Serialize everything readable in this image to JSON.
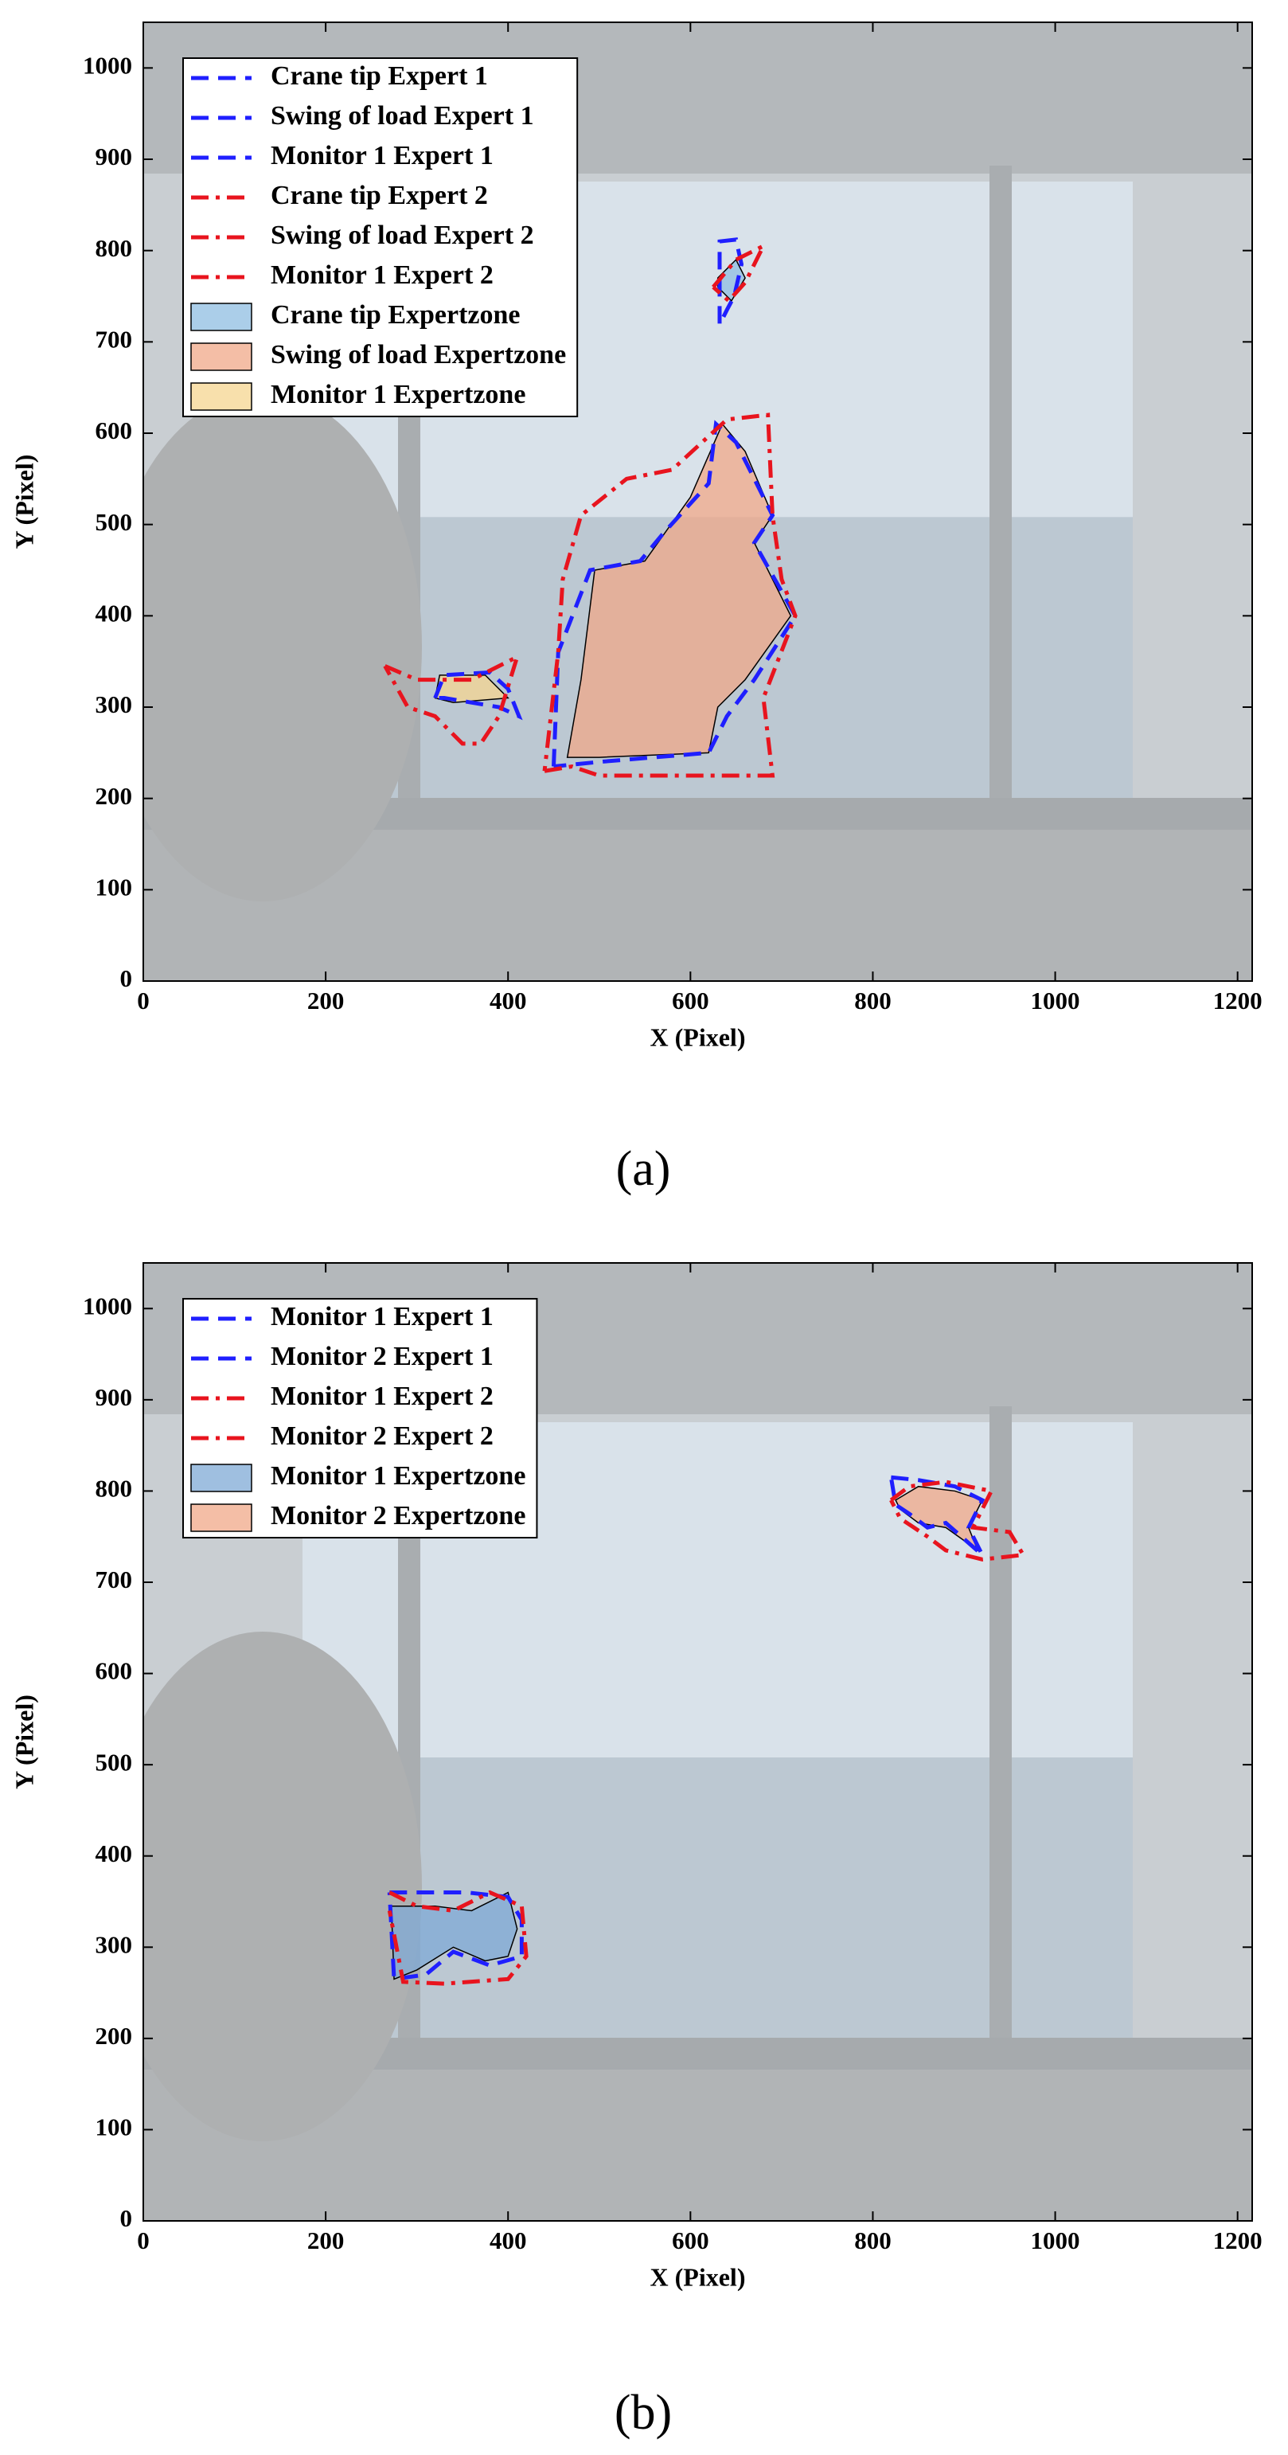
{
  "chart_data": [
    {
      "type": "line",
      "label": "(a)",
      "xlabel": "X (Pixel)",
      "ylabel": "Y (Pixel)",
      "xlim": [
        0,
        1216
      ],
      "ylim": [
        0,
        1050
      ],
      "xticks": [
        0,
        200,
        400,
        600,
        800,
        1000,
        1200
      ],
      "yticks": [
        0,
        100,
        200,
        300,
        400,
        500,
        600,
        700,
        800,
        900,
        1000
      ],
      "legend": "upper left",
      "series": [
        {
          "name": "Crane tip Expert 1",
          "color": "#1f1fff",
          "dash": "dash",
          "x": [
            632,
            632,
            650,
            656,
            648,
            640,
            635
          ],
          "y": [
            720,
            810,
            812,
            785,
            750,
            735,
            725
          ]
        },
        {
          "name": "Swing of load Expert 1",
          "color": "#1f1fff",
          "dash": "dash",
          "x": [
            450,
            455,
            490,
            545,
            570,
            620,
            628,
            650,
            690,
            670,
            715,
            670,
            640,
            620,
            500,
            450
          ],
          "y": [
            235,
            360,
            450,
            460,
            490,
            545,
            610,
            590,
            510,
            480,
            400,
            330,
            290,
            250,
            240,
            235
          ]
        },
        {
          "name": "Monitor 1 Expert 1",
          "color": "#1f1fff",
          "dash": "dash",
          "x": [
            320,
            330,
            380,
            400,
            412,
            390,
            330,
            320
          ],
          "y": [
            310,
            335,
            338,
            320,
            290,
            300,
            310,
            310
          ]
        },
        {
          "name": "Crane tip Expert 2",
          "color": "#e8141e",
          "dash": "dashdot",
          "x": [
            625,
            650,
            680,
            660,
            642,
            625
          ],
          "y": [
            760,
            790,
            805,
            765,
            745,
            760
          ]
        },
        {
          "name": "Swing of load Expert 2",
          "color": "#e8141e",
          "dash": "dashdot",
          "x": [
            440,
            470,
            500,
            620,
            690,
            680,
            715,
            700,
            690,
            685,
            640,
            580,
            530,
            480,
            460,
            455,
            440
          ],
          "y": [
            230,
            235,
            225,
            225,
            225,
            310,
            400,
            440,
            510,
            620,
            615,
            560,
            550,
            510,
            440,
            360,
            230
          ]
        },
        {
          "name": "Monitor 1 Expert 2",
          "color": "#e8141e",
          "dash": "dashdot",
          "x": [
            265,
            300,
            360,
            410,
            390,
            370,
            350,
            320,
            290,
            265
          ],
          "y": [
            345,
            330,
            330,
            355,
            290,
            260,
            260,
            290,
            300,
            345
          ]
        },
        {
          "name": "Crane tip Expertzone",
          "fill": "#8fbde2",
          "edge": "#000000",
          "x": [
            630,
            650,
            660,
            645,
            630
          ],
          "y": [
            770,
            790,
            770,
            745,
            760
          ]
        },
        {
          "name": "Swing of load Expertzone",
          "fill": "#f0a888",
          "edge": "#000000",
          "x": [
            465,
            480,
            495,
            550,
            600,
            635,
            660,
            690,
            670,
            710,
            660,
            630,
            620,
            500
          ],
          "y": [
            245,
            330,
            450,
            460,
            530,
            610,
            580,
            510,
            480,
            400,
            330,
            300,
            250,
            245
          ]
        },
        {
          "name": "Monitor 1 Expertzone",
          "fill": "#f6d690",
          "edge": "#000000",
          "x": [
            320,
            325,
            375,
            400,
            340
          ],
          "y": [
            310,
            335,
            335,
            310,
            305
          ]
        }
      ]
    },
    {
      "type": "line",
      "label": "(b)",
      "xlabel": "X (Pixel)",
      "ylabel": "Y (Pixel)",
      "xlim": [
        0,
        1216
      ],
      "ylim": [
        0,
        1050
      ],
      "xticks": [
        0,
        200,
        400,
        600,
        800,
        1000,
        1200
      ],
      "yticks": [
        0,
        100,
        200,
        300,
        400,
        500,
        600,
        700,
        800,
        900,
        1000
      ],
      "legend": "upper left",
      "series": [
        {
          "name": "Monitor 1 Expert 1",
          "color": "#1f1fff",
          "dash": "dash",
          "x": [
            270,
            355,
            400,
            415,
            415,
            380,
            340,
            310,
            275,
            270
          ],
          "y": [
            360,
            360,
            355,
            330,
            290,
            280,
            295,
            270,
            265,
            360
          ]
        },
        {
          "name": "Monitor 2 Expert 1",
          "color": "#1f1fff",
          "dash": "dash",
          "x": [
            820,
            850,
            890,
            920,
            905,
            920,
            880,
            860,
            840,
            825,
            820
          ],
          "y": [
            815,
            812,
            805,
            790,
            760,
            730,
            765,
            760,
            775,
            785,
            815
          ]
        },
        {
          "name": "Monitor 1 Expert 2",
          "color": "#e8141e",
          "dash": "dashdot",
          "x": [
            270,
            300,
            340,
            380,
            415,
            420,
            400,
            330,
            285,
            270
          ],
          "y": [
            360,
            345,
            340,
            360,
            345,
            290,
            265,
            260,
            262,
            340
          ]
        },
        {
          "name": "Monitor 2 Expert 2",
          "color": "#e8141e",
          "dash": "dashdot",
          "x": [
            820,
            840,
            880,
            930,
            910,
            950,
            965,
            920,
            880,
            860,
            830,
            820
          ],
          "y": [
            790,
            805,
            810,
            800,
            760,
            755,
            730,
            725,
            735,
            750,
            770,
            790
          ]
        },
        {
          "name": "Monitor 1 Expertzone",
          "fill": "#7fa9d6",
          "edge": "#000000",
          "x": [
            272,
            320,
            360,
            400,
            410,
            400,
            375,
            340,
            300,
            275
          ],
          "y": [
            345,
            345,
            340,
            360,
            320,
            290,
            285,
            300,
            275,
            265
          ]
        },
        {
          "name": "Monitor 2 Expertzone",
          "fill": "#f0a888",
          "edge": "#000000",
          "x": [
            825,
            850,
            890,
            920,
            905,
            915,
            880,
            850,
            830
          ],
          "y": [
            790,
            805,
            800,
            790,
            760,
            735,
            760,
            765,
            780
          ]
        }
      ]
    }
  ]
}
